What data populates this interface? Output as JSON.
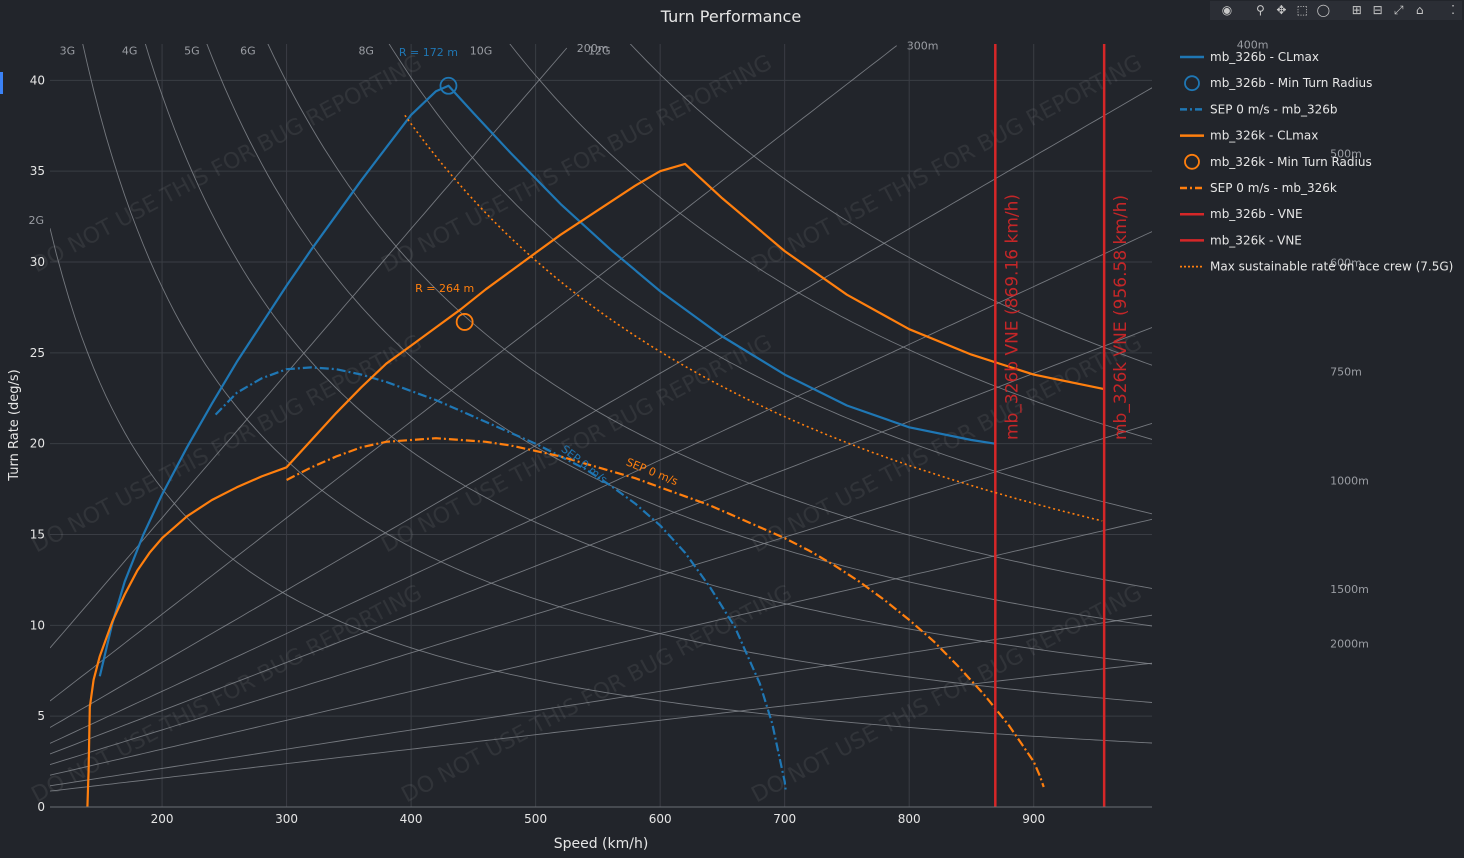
{
  "title": "Turn Performance",
  "modebar": {
    "icons": [
      "camera-icon",
      "zoom-icon",
      "pan-icon",
      "box-select-icon",
      "lasso-select-icon",
      "zoom-in-icon",
      "zoom-out-icon",
      "reset-axes-icon",
      "plotly-logo-icon"
    ]
  },
  "chart_data": {
    "type": "line",
    "title": "Turn Performance",
    "xlabel": "Speed (km/h)",
    "ylabel": "Turn Rate (deg/s)",
    "xlim": [
      110,
      995
    ],
    "ylim": [
      0,
      42
    ],
    "xticks": [
      "200",
      "300",
      "400",
      "500",
      "600",
      "700",
      "800",
      "900"
    ],
    "yticks": [
      "0",
      "5",
      "10",
      "15",
      "20",
      "25",
      "30",
      "35",
      "40"
    ],
    "watermark": "DO NOT USE THIS FOR BUG REPORTING",
    "g_lines": [
      {
        "label": "2G",
        "g": 2
      },
      {
        "label": "3G",
        "g": 3
      },
      {
        "label": "4G",
        "g": 4
      },
      {
        "label": "5G",
        "g": 5
      },
      {
        "label": "6G",
        "g": 6
      },
      {
        "label": "8G",
        "g": 8
      },
      {
        "label": "10G",
        "g": 10
      },
      {
        "label": "12G",
        "g": 12
      }
    ],
    "radius_lines": [
      {
        "label": "200m",
        "r": 200
      },
      {
        "label": "300m",
        "r": 300
      },
      {
        "label": "400m",
        "r": 400
      },
      {
        "label": "500m",
        "r": 500
      },
      {
        "label": "600m",
        "r": 600
      },
      {
        "label": "750m",
        "r": 750
      },
      {
        "label": "1000m",
        "r": 1000
      },
      {
        "label": "1500m",
        "r": 1500
      },
      {
        "label": "2000m",
        "r": 2000
      }
    ],
    "series": [
      {
        "name": "mb_326b - CLmax",
        "color": "#1f77b4",
        "style": "solid",
        "x": [
          150,
          160,
          170,
          185,
          200,
          220,
          240,
          260,
          280,
          300,
          320,
          340,
          360,
          380,
          400,
          420,
          430,
          450,
          480,
          520,
          560,
          600,
          650,
          700,
          750,
          800,
          850,
          869
        ],
        "y": [
          7.2,
          10.1,
          12.4,
          15.0,
          17.2,
          19.8,
          22.2,
          24.5,
          26.6,
          28.7,
          30.7,
          32.6,
          34.5,
          36.3,
          38.1,
          39.4,
          39.7,
          38.2,
          36.0,
          33.2,
          30.7,
          28.4,
          25.9,
          23.8,
          22.1,
          20.9,
          20.2,
          20.0
        ]
      },
      {
        "name": "mb_326b - Min Turn Radius",
        "color": "#1f77b4",
        "style": "marker",
        "x": [
          430
        ],
        "y": [
          39.7
        ],
        "annotation": "R = 172 m"
      },
      {
        "name": "SEP 0 m/s - mb_326b",
        "color": "#1f77b4",
        "style": "dashdot",
        "x": [
          243,
          260,
          280,
          300,
          320,
          340,
          360,
          380,
          400,
          420,
          440,
          460,
          480,
          500,
          520,
          540,
          560,
          580,
          600,
          620,
          640,
          660,
          680,
          690,
          695,
          700,
          701
        ],
        "y": [
          21.6,
          22.8,
          23.6,
          24.1,
          24.2,
          24.1,
          23.8,
          23.4,
          22.9,
          22.4,
          21.8,
          21.2,
          20.6,
          20.0,
          19.3,
          18.6,
          17.7,
          16.7,
          15.5,
          14.0,
          12.1,
          9.9,
          6.8,
          4.6,
          3.0,
          1.4,
          0.8
        ],
        "annotation": "SEP 0 m/s"
      },
      {
        "name": "mb_326k - CLmax",
        "color": "#ff7f0e",
        "style": "solid",
        "x": [
          140,
          141,
          142,
          145,
          150,
          160,
          170,
          180,
          190,
          200,
          220,
          240,
          260,
          280,
          300,
          320,
          340,
          360,
          380,
          400,
          420,
          440,
          460,
          480,
          500,
          520,
          540,
          560,
          580,
          600,
          620,
          650,
          700,
          750,
          800,
          850,
          900,
          957
        ],
        "y": [
          0,
          2.0,
          5.5,
          7.0,
          8.3,
          10.2,
          11.7,
          13.0,
          14.0,
          14.8,
          16.0,
          16.9,
          17.6,
          18.2,
          18.7,
          20.2,
          21.7,
          23.1,
          24.4,
          25.4,
          26.4,
          27.4,
          28.5,
          29.5,
          30.5,
          31.5,
          32.4,
          33.3,
          34.2,
          35.0,
          35.4,
          33.5,
          30.6,
          28.2,
          26.3,
          24.9,
          23.8,
          23.0
        ]
      },
      {
        "name": "mb_326k - Min Turn Radius",
        "color": "#ff7f0e",
        "style": "marker",
        "x": [
          443
        ],
        "y": [
          26.7
        ],
        "annotation": "R = 264 m"
      },
      {
        "name": "SEP 0 m/s - mb_326k",
        "color": "#ff7f0e",
        "style": "dashdot",
        "x": [
          300,
          320,
          340,
          360,
          380,
          400,
          420,
          440,
          460,
          480,
          500,
          520,
          540,
          560,
          580,
          600,
          620,
          640,
          660,
          680,
          700,
          720,
          740,
          760,
          780,
          800,
          820,
          840,
          860,
          880,
          890,
          900,
          905,
          908
        ],
        "y": [
          18.0,
          18.7,
          19.3,
          19.8,
          20.1,
          20.2,
          20.3,
          20.2,
          20.1,
          19.9,
          19.6,
          19.3,
          18.9,
          18.5,
          18.1,
          17.6,
          17.1,
          16.6,
          16.0,
          15.4,
          14.8,
          14.1,
          13.3,
          12.4,
          11.4,
          10.3,
          9.1,
          7.7,
          6.2,
          4.5,
          3.5,
          2.5,
          1.7,
          1.1
        ],
        "annotation": "SEP 0 m/s"
      },
      {
        "name": "mb_326b - VNE",
        "color": "#d62728",
        "style": "vline",
        "x": [
          869.16
        ],
        "annotation": "mb_326b VNE (869.16 km/h)"
      },
      {
        "name": "mb_326k - VNE",
        "color": "#d62728",
        "style": "vline",
        "x": [
          956.58
        ],
        "annotation": "mb_326k VNE (956.58 km/h)"
      },
      {
        "name": "Max sustainable rate on ace crew (7.5G)",
        "color": "#ff7f0e",
        "style": "dotted",
        "g": 7.5,
        "x_start": 395,
        "x_end": 957
      }
    ],
    "legend": "right"
  }
}
